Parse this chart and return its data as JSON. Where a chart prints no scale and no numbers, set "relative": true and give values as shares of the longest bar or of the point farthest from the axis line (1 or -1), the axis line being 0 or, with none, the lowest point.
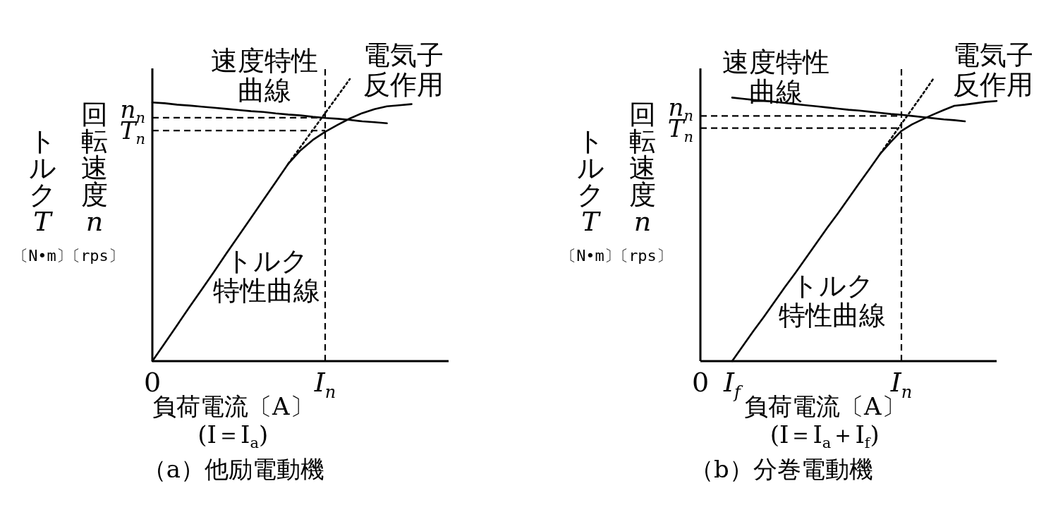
{
  "chart_data": [
    {
      "type": "line",
      "relative": true,
      "title": "（a）他励電動機",
      "xlabel": "負荷電流〔A〕\n(I＝I$_{a}$)",
      "ylabel": "トルクT〔N•m〕",
      "y2label": "回転速度n〔rps〕",
      "grid": false,
      "categories": [
        "0",
        null,
        null,
        null,
        null,
        null,
        null,
        null,
        null,
        null,
        null,
        null,
        null,
        null,
        "I$_{n}$",
        null,
        null,
        null,
        null,
        null,
        null,
        null,
        null,
        null,
        null
      ],
      "series": [
        {
          "color": "#000000",
          "line_style": "solid",
          "values": [
            0.917,
            0.914,
            0.909,
            0.906,
            0.902,
            0.898,
            0.894,
            0.89,
            0.886,
            0.883,
            0.878,
            0.874,
            0.871,
            0.866,
            0.862,
            0.859,
            0.855,
            0.85,
            0.847,
            0.843,
            null,
            null,
            null,
            null,
            null
          ]
        },
        {
          "color": "#000000",
          "line_style": "solid",
          "values": [
            0,
            0.063,
            0.127,
            0.191,
            0.254,
            0.317,
            0.382,
            0.445,
            0.508,
            0.572,
            0.635,
            0.699,
            0.747,
            0.784,
            0.813,
            0.837,
            0.86,
            0.879,
            0.893,
            0.903,
            0.907,
            0.911,
            null,
            null,
            null
          ]
        },
        {
          "color": "#000000",
          "line_style": "dotted",
          "values": [
            null,
            null,
            null,
            null,
            null,
            null,
            null,
            null,
            null,
            null,
            null,
            0.699,
            0.759,
            0.819,
            0.879,
            0.939,
            1.0,
            null,
            null,
            null,
            null,
            null,
            null,
            null,
            null
          ]
        }
      ],
      "ref_lines": [
        {
          "axis": "x",
          "value": "I$_{n}$",
          "line_style": "dashed"
        },
        {
          "axis": "y",
          "value": 0.863,
          "label": "n$_{n}$",
          "line_style": "dashed"
        },
        {
          "axis": "y",
          "value": 0.817,
          "label": "T$_{n}$",
          "line_style": "dashed"
        }
      ],
      "annotations": [
        "速度特性曲線",
        "電気子反作用",
        "トルク特性曲線"
      ]
    },
    {
      "type": "line",
      "relative": true,
      "title": "（b）分巻電動機",
      "xlabel": "負荷電流〔A〕\n(I＝I$_{a}$＋I$_{f}$)",
      "ylabel": "トルクT〔N•m〕",
      "y2label": "回転速度n〔rps〕",
      "grid": false,
      "categories": [
        "0",
        null,
        null,
        "I$_{f}$",
        null,
        null,
        null,
        null,
        null,
        null,
        null,
        null,
        null,
        null,
        null,
        null,
        null,
        null,
        null,
        "I$_{n}$",
        null,
        null,
        null,
        null,
        null,
        null,
        null,
        null,
        null
      ],
      "series": [
        {
          "color": "#000000",
          "line_style": "solid",
          "values": [
            null,
            null,
            null,
            0.934,
            0.93,
            0.926,
            0.923,
            0.919,
            0.915,
            0.911,
            0.907,
            0.903,
            0.899,
            0.895,
            0.891,
            0.888,
            0.884,
            0.88,
            0.876,
            0.873,
            0.869,
            0.865,
            0.861,
            0.857,
            0.854,
            0.85,
            null,
            null,
            null
          ]
        },
        {
          "color": "#000000",
          "line_style": "solid",
          "values": [
            null,
            null,
            null,
            0,
            0.053,
            0.106,
            0.157,
            0.21,
            0.263,
            0.314,
            0.367,
            0.42,
            0.473,
            0.524,
            0.577,
            0.63,
            0.682,
            0.735,
            0.777,
            0.816,
            0.839,
            0.857,
            0.874,
            0.89,
            0.905,
            0.909,
            0.914,
            0.919,
            0.922
          ]
        },
        {
          "color": "#000000",
          "line_style": "dotted",
          "values": [
            null,
            null,
            null,
            null,
            null,
            null,
            null,
            null,
            null,
            null,
            null,
            null,
            null,
            null,
            null,
            null,
            null,
            0.735,
            0.788,
            0.841,
            0.893,
            0.946,
            1.0,
            null,
            null,
            null,
            null,
            null,
            null
          ]
        }
      ],
      "ref_lines": [
        {
          "axis": "x",
          "value": "I$_{n}$",
          "line_style": "dashed"
        },
        {
          "axis": "y",
          "value": 0.869,
          "label": "n$_{n}$",
          "line_style": "dashed"
        },
        {
          "axis": "y",
          "value": 0.826,
          "label": "T$_{n}$",
          "line_style": "dashed"
        }
      ],
      "annotations": [
        "速度特性曲線",
        "電気子反作用",
        "トルク特性曲線"
      ]
    }
  ]
}
